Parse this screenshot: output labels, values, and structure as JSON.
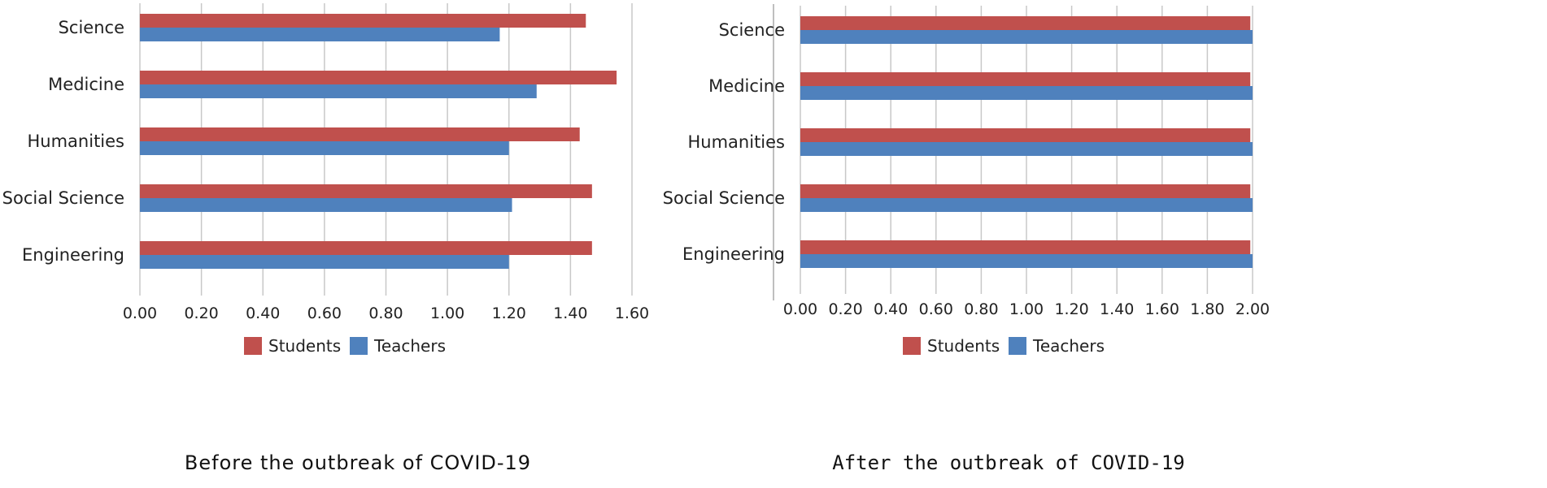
{
  "colors": {
    "students": "#C0504D",
    "teachers": "#4F81BD",
    "grid": "#C8C8C8",
    "divider": "#BFBFBF"
  },
  "chart_data": [
    {
      "type": "bar",
      "orientation": "horizontal",
      "caption": "Before the outbreak of COVID-19",
      "categories": [
        "Science",
        "Medicine",
        "Humanities",
        "Social Science",
        "Engineering"
      ],
      "series": [
        {
          "name": "Students",
          "values": [
            1.45,
            1.55,
            1.43,
            1.47,
            1.47
          ]
        },
        {
          "name": "Teachers",
          "values": [
            1.17,
            1.29,
            1.2,
            1.21,
            1.2
          ]
        }
      ],
      "xlim": [
        0,
        1.6
      ],
      "ticks": [
        "0.00",
        "0.20",
        "0.40",
        "0.60",
        "0.80",
        "1.00",
        "1.20",
        "1.40",
        "1.60"
      ],
      "grid": true,
      "legend": "bottom"
    },
    {
      "type": "bar",
      "orientation": "horizontal",
      "caption": "After the outbreak of COVID-19",
      "categories": [
        "Science",
        "Medicine",
        "Humanities",
        "Social Science",
        "Engineering"
      ],
      "series": [
        {
          "name": "Students",
          "values": [
            1.99,
            1.99,
            1.99,
            1.99,
            1.99
          ]
        },
        {
          "name": "Teachers",
          "values": [
            2.0,
            2.0,
            2.0,
            2.0,
            2.0
          ]
        }
      ],
      "xlim": [
        0,
        2.0
      ],
      "ticks": [
        "0.00",
        "0.20",
        "0.40",
        "0.60",
        "0.80",
        "1.00",
        "1.20",
        "1.40",
        "1.60",
        "1.80",
        "2.00"
      ],
      "grid": true,
      "legend": "bottom"
    }
  ]
}
